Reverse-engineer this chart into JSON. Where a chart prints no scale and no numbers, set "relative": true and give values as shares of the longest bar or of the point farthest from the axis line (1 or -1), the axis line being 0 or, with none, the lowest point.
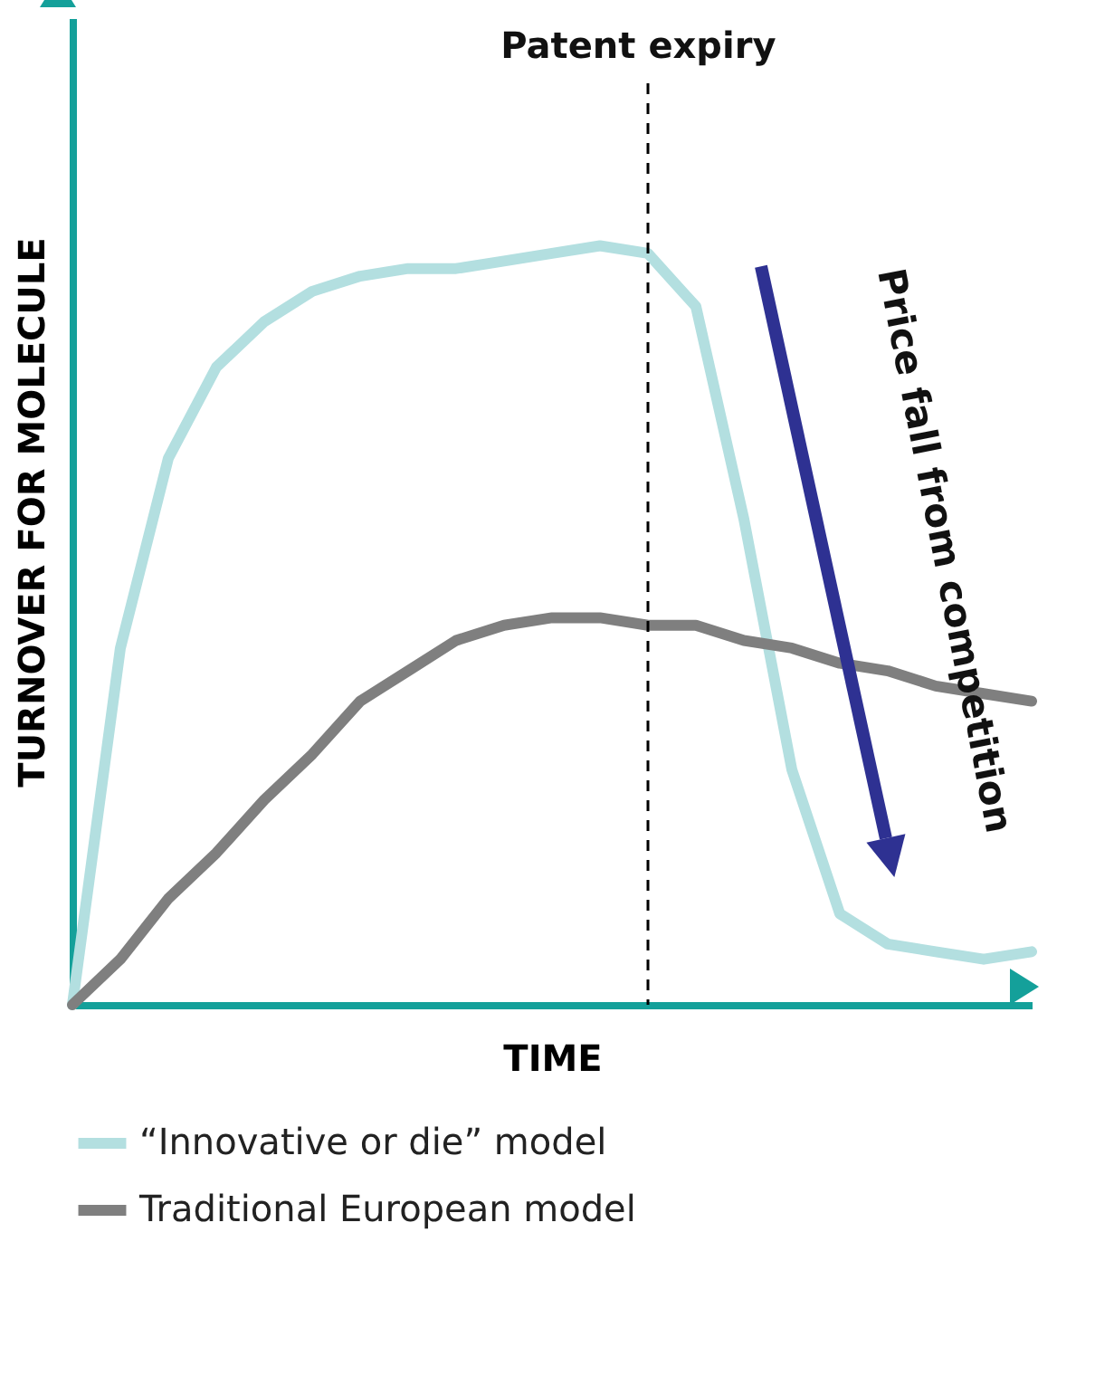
{
  "chart_data": {
    "type": "line",
    "relative": true,
    "xlabel": "TIME",
    "ylabel": "TURNOVER FOR MOLECULE",
    "categories": [
      null,
      null,
      null,
      null,
      null,
      null,
      null,
      null,
      null,
      null,
      null,
      null,
      null,
      null,
      null,
      null,
      null,
      null,
      null,
      null,
      null
    ],
    "series": [
      {
        "name": "“Innovative or die” model",
        "color": "#b3dfe0",
        "values": [
          0,
          0.47,
          0.72,
          0.84,
          0.9,
          0.94,
          0.96,
          0.97,
          0.97,
          0.98,
          0.99,
          1,
          0.99,
          0.92,
          0.64,
          0.31,
          0.12,
          0.08,
          0.07,
          0.06,
          0.07
        ]
      },
      {
        "name": "Traditional European model",
        "color": "#7f7f7f",
        "values": [
          0,
          0.06,
          0.14,
          0.2,
          0.27,
          0.33,
          0.4,
          0.44,
          0.48,
          0.5,
          0.51,
          0.51,
          0.5,
          0.5,
          0.48,
          0.47,
          0.45,
          0.44,
          0.42,
          0.41,
          0.4
        ]
      }
    ],
    "annotations": [
      "Patent expiry",
      "Price fall from competition"
    ],
    "legend": "bottom",
    "line_style": "solid",
    "marker": "none"
  }
}
